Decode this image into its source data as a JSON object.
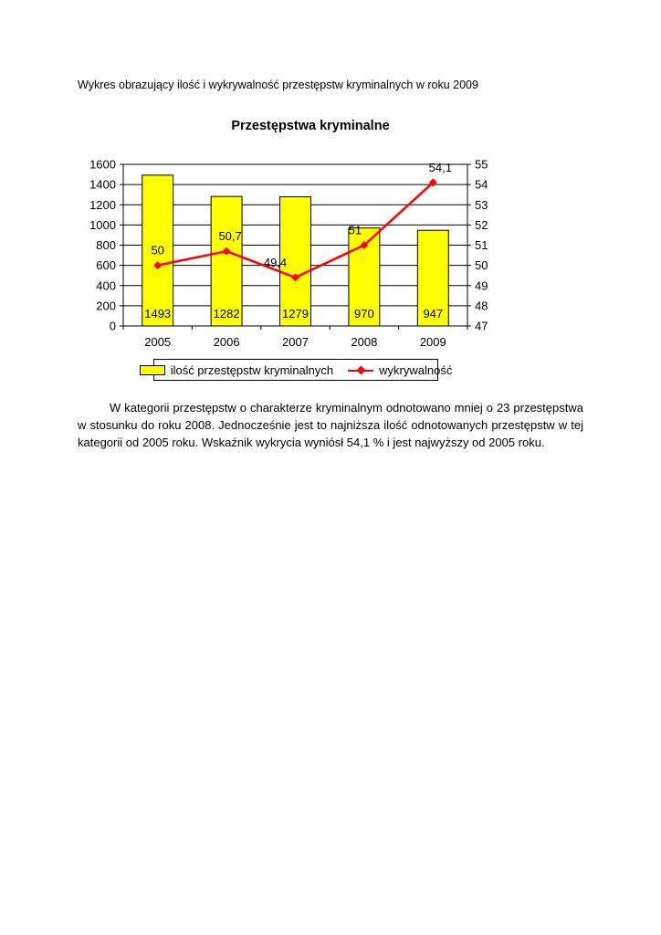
{
  "header": {
    "text": "Wykres obrazujący ilość i wykrywalność przestępstw kryminalnych w roku 2009"
  },
  "chart_data": {
    "type": "bar+line",
    "title": "Przestępstwa kryminalne",
    "categories": [
      "2005",
      "2006",
      "2007",
      "2008",
      "2009"
    ],
    "series": [
      {
        "name": "ilość przestępstw kryminalnych",
        "type": "bar",
        "axis": "left",
        "color": "#ffff00",
        "values": [
          1493,
          1282,
          1279,
          970,
          947
        ],
        "value_labels": [
          "1493",
          "1282",
          "1279",
          "970",
          "947"
        ]
      },
      {
        "name": "wykrywalność",
        "type": "line",
        "axis": "right",
        "color": "#ff0000",
        "values": [
          50,
          50.7,
          49.4,
          51,
          54.1
        ],
        "value_labels": [
          "50",
          "50,7",
          "49,4",
          "51",
          "54,1"
        ]
      }
    ],
    "left_axis": {
      "min": 0,
      "max": 1600,
      "step": 200,
      "ticks": [
        "1600",
        "1400",
        "1200",
        "1000",
        "800",
        "600",
        "400",
        "200",
        "0"
      ]
    },
    "right_axis": {
      "min": 47,
      "max": 55,
      "step": 1,
      "ticks": [
        "55",
        "54",
        "53",
        "52",
        "51",
        "50",
        "49",
        "48",
        "47"
      ]
    },
    "grid": true,
    "legend_position": "bottom",
    "colors": {
      "bar": "#ffff00",
      "line": "#ff0000",
      "axis": "#000000",
      "background": "#ffffff"
    }
  },
  "body": {
    "paragraph": "W kategorii przestępstw o charakterze kryminalnym odnotowano  mniej o 23 przestępstwa w stosunku do roku 2008. Jednocześnie jest to najniższa ilość odnotowanych przestępstw w tej kategorii od 2005 roku. Wskaźnik wykrycia wyniósł 54,1 % i jest najwyższy od 2005 roku."
  }
}
